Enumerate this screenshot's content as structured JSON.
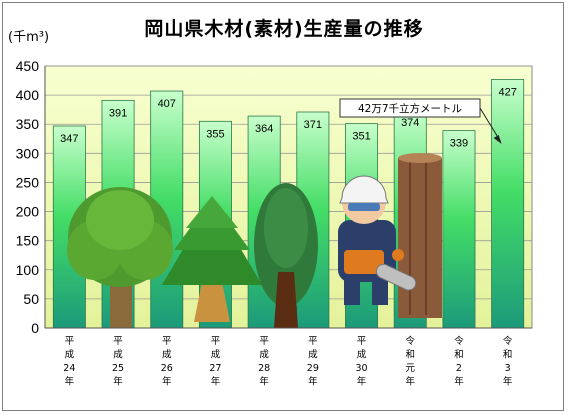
{
  "chart_data": {
    "type": "bar",
    "title": "岡山県木材(素材)生産量の推移",
    "unit_label": "(千m³)",
    "categories": [
      [
        "平",
        "成",
        "24",
        "年"
      ],
      [
        "平",
        "成",
        "25",
        "年"
      ],
      [
        "平",
        "成",
        "26",
        "年"
      ],
      [
        "平",
        "成",
        "27",
        "年"
      ],
      [
        "平",
        "成",
        "28",
        "年"
      ],
      [
        "平",
        "成",
        "29",
        "年"
      ],
      [
        "平",
        "成",
        "30",
        "年"
      ],
      [
        "令",
        "和",
        "元",
        "年"
      ],
      [
        "令",
        "和",
        "2",
        "年"
      ],
      [
        "令",
        "和",
        "3",
        "年"
      ]
    ],
    "values": [
      347,
      391,
      407,
      355,
      364,
      371,
      351,
      374,
      339,
      427
    ],
    "ylim": [
      0,
      450
    ],
    "yticks": [
      0,
      50,
      100,
      150,
      200,
      250,
      300,
      350,
      400,
      450
    ],
    "grid": true,
    "annotation": {
      "text": "42万7千立方メートル",
      "points_to_index": 9
    },
    "colors": {
      "plot_bg_top": "#f8ffd0",
      "plot_bg_bottom": "#e4f29a",
      "bar_top": "#c8ffcc",
      "bar_mid": "#44dd66",
      "bar_bottom": "#1c9a7a"
    },
    "illustration_icons": [
      "broadleaf-tree-icon",
      "cedar-tree-icon",
      "cypress-tree-icon",
      "lumberjack-chainsaw-icon",
      "cut-log-icon"
    ]
  }
}
